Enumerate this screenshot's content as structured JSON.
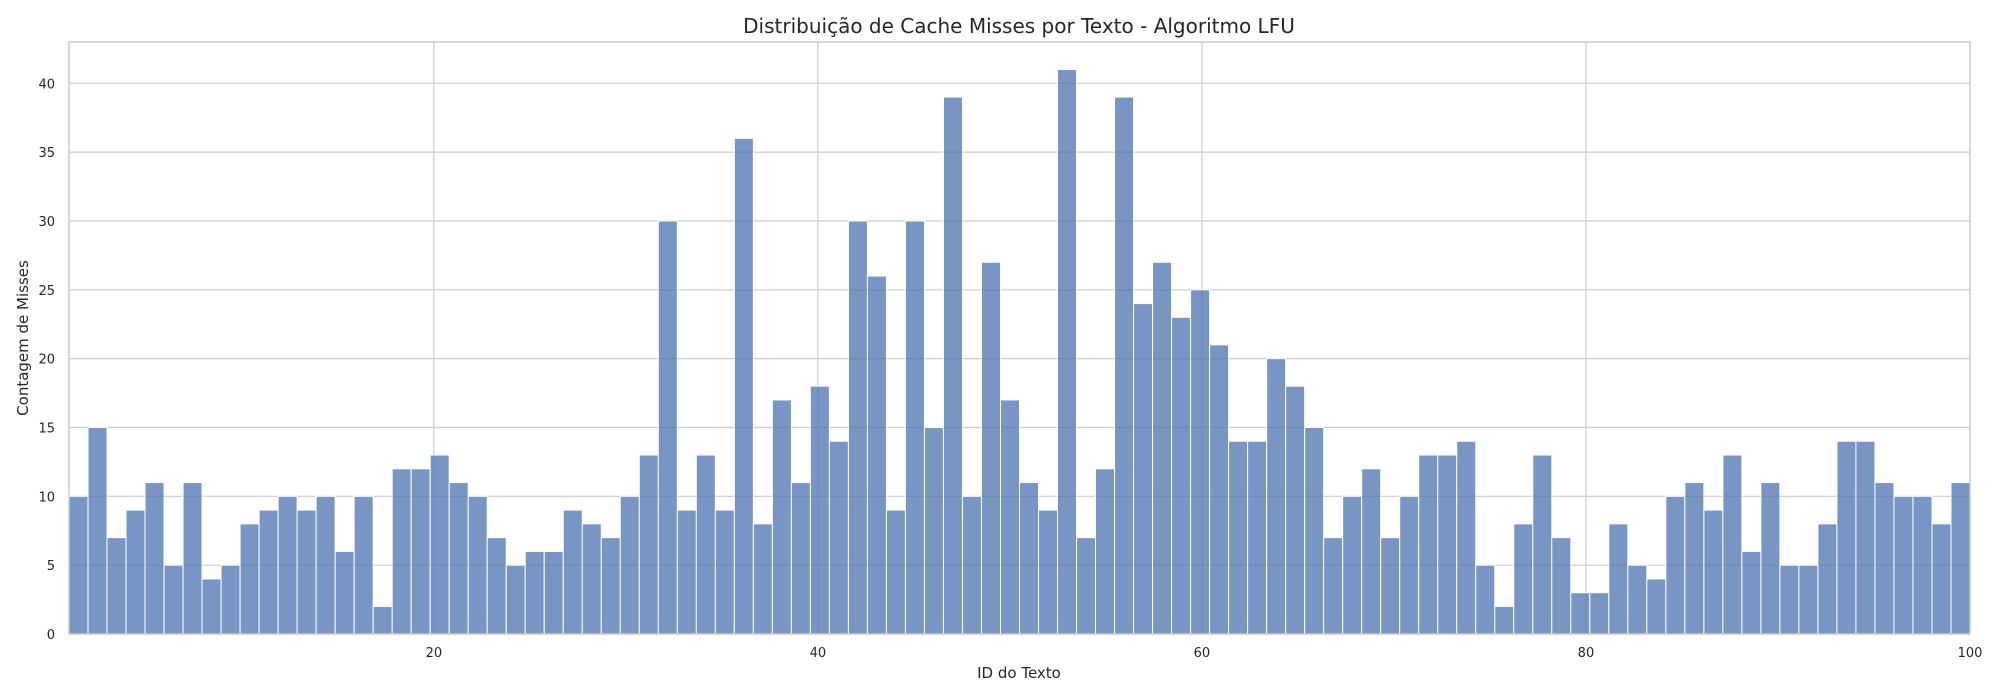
{
  "chart_data": {
    "type": "bar",
    "title": "Distribuição de Cache Misses por Texto - Algoritmo LFU",
    "xlabel": "ID do Texto",
    "ylabel": "Contagem de Misses",
    "xlim": [
      1,
      100
    ],
    "ylim": [
      0,
      43
    ],
    "xticks": [
      20,
      40,
      60,
      80,
      100
    ],
    "yticks": [
      0,
      5,
      10,
      15,
      20,
      25,
      30,
      35,
      40
    ],
    "grid": true,
    "bar_color": "#4c72b0",
    "values": [
      10,
      15,
      7,
      9,
      11,
      5,
      11,
      4,
      5,
      8,
      9,
      10,
      9,
      10,
      6,
      10,
      2,
      12,
      12,
      13,
      11,
      10,
      7,
      5,
      6,
      6,
      9,
      8,
      7,
      10,
      13,
      30,
      9,
      13,
      9,
      36,
      8,
      17,
      11,
      18,
      14,
      30,
      26,
      9,
      30,
      15,
      39,
      10,
      27,
      17,
      11,
      9,
      41,
      7,
      12,
      39,
      24,
      27,
      23,
      25,
      21,
      14,
      14,
      20,
      18,
      15,
      7,
      10,
      12,
      7,
      10,
      13,
      13,
      14,
      5,
      2,
      8,
      13,
      7,
      3,
      3,
      8,
      5,
      4,
      10,
      11,
      9,
      13,
      6,
      11,
      5,
      5,
      8,
      14,
      14,
      11,
      10,
      10,
      8,
      11
    ]
  }
}
